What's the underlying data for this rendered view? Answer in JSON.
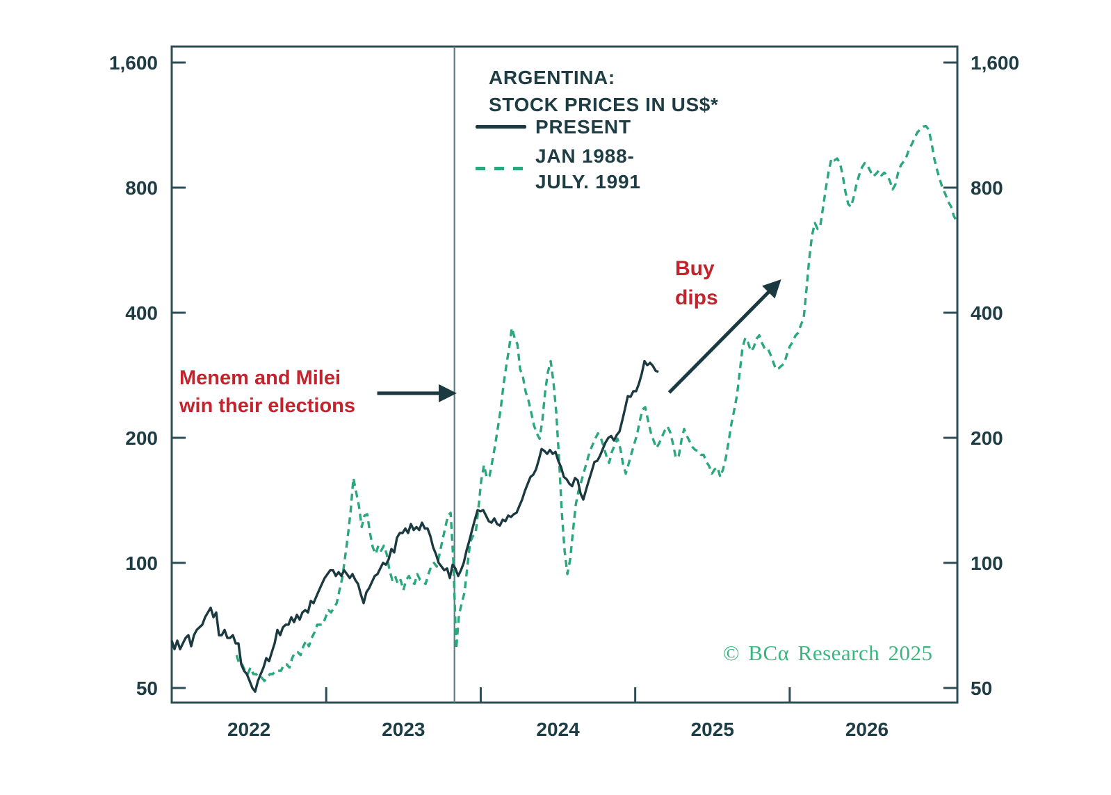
{
  "page": {
    "background": "#ffffff"
  },
  "colors": {
    "dark_line": "#1b3941",
    "green_line": "#2aa77b",
    "red_annotation": "#c2242e",
    "axis": "#2d4c54",
    "tick_label": "#1d3c44",
    "event_line": "#5f7c82",
    "logo_green": "#3bb57e"
  },
  "chart_data": {
    "type": "line",
    "title_lines": [
      "ARGENTINA:",
      "STOCK PRICES IN US$*"
    ],
    "y_axis": {
      "scale": "log",
      "log_base": 2,
      "tick_labels": [
        "1,600",
        "800",
        "400",
        "200",
        "100",
        "50"
      ],
      "tick_values": [
        1600,
        800,
        400,
        200,
        100,
        50
      ],
      "label_sides": "both",
      "range": [
        46,
        1750
      ]
    },
    "x_axis": {
      "range_years": [
        2022.0,
        2027.09
      ],
      "boundary_tick_years": [
        2023,
        2024,
        2025,
        2026
      ],
      "year_labels": [
        "2022",
        "2023",
        "2024",
        "2025",
        "2026"
      ]
    },
    "event_line": {
      "year": 2023.83,
      "meaning": "Menem and Milei win their elections"
    },
    "arrows": [
      {
        "name": "election-arrow",
        "from": [
          2023.33,
          256
        ],
        "to": [
          2023.81,
          256
        ]
      },
      {
        "name": "buy-dips-arrow",
        "from": [
          2025.22,
          257
        ],
        "to": [
          2025.92,
          471
        ]
      }
    ],
    "series": [
      {
        "name": "PRESENT",
        "id": "present",
        "style": "solid",
        "color": "#1b3941",
        "start_year": 2022.0,
        "end_year": 2025.15,
        "values": [
          65,
          62,
          65,
          62,
          64,
          66,
          67,
          63,
          67,
          69,
          70,
          71,
          74,
          76,
          78,
          74,
          76,
          67,
          67,
          69,
          66,
          66,
          67,
          64,
          64,
          57,
          55,
          54,
          52,
          50,
          49,
          52,
          54,
          56,
          59,
          58,
          61,
          64,
          69,
          67,
          70,
          71,
          71,
          74,
          72,
          75,
          73,
          76,
          77,
          76,
          81,
          80,
          83,
          86,
          89,
          92,
          94,
          96,
          96,
          93,
          95,
          93,
          96,
          94,
          92,
          94,
          91,
          89,
          84,
          80,
          85,
          87,
          90,
          93,
          94,
          97,
          100,
          99,
          102,
          108,
          106,
          115,
          118,
          118,
          121,
          118,
          124,
          120,
          122,
          120,
          125,
          121,
          121,
          116,
          109,
          105,
          100,
          98,
          96,
          97,
          92,
          99,
          97,
          93,
          96,
          100,
          107,
          113,
          120,
          127,
          134,
          133,
          134,
          130,
          126,
          125,
          128,
          124,
          123,
          127,
          126,
          130,
          129,
          131,
          132,
          137,
          142,
          149,
          155,
          161,
          163,
          168,
          177,
          188,
          186,
          183,
          187,
          183,
          185,
          176,
          170,
          161,
          159,
          155,
          153,
          160,
          158,
          147,
          142,
          150,
          158,
          166,
          175,
          176,
          181,
          188,
          195,
          200,
          202,
          197,
          203,
          207,
          220,
          235,
          252,
          251,
          259,
          259,
          270,
          285,
          306,
          299,
          303,
          298,
          290,
          288
        ]
      },
      {
        "name": "JAN 1988-JULY. 1991",
        "id": "jan1988-july1991",
        "style": "dashed",
        "color": "#2aa77b",
        "start_year": 2022.42,
        "end_year": 2027.08,
        "values": [
          60,
          57,
          57,
          55,
          54,
          56,
          54,
          54,
          53,
          53,
          52,
          53,
          54,
          54,
          55,
          55,
          55,
          57,
          57,
          56,
          59,
          61,
          61,
          60,
          63,
          65,
          63,
          66,
          68,
          71,
          71,
          71,
          74,
          77,
          76,
          78,
          80,
          86,
          92,
          103,
          116,
          133,
          160,
          148,
          137,
          122,
          130,
          131,
          118,
          109,
          105,
          110,
          107,
          110,
          105,
          96,
          91,
          93,
          89,
          91,
          86,
          91,
          93,
          90,
          89,
          94,
          91,
          90,
          89,
          94,
          98,
          100,
          98,
          105,
          113,
          121,
          130,
          132,
          100,
          62,
          75,
          80,
          85,
          98,
          112,
          116,
          118,
          136,
          158,
          172,
          160,
          162,
          176,
          192,
          212,
          235,
          268,
          298,
          328,
          368,
          348,
          336,
          292,
          280,
          258,
          246,
          230,
          214,
          205,
          199,
          220,
          258,
          288,
          306,
          272,
          230,
          178,
          132,
          107,
          94,
          102,
          119,
          138,
          149,
          157,
          166,
          175,
          185,
          192,
          199,
          205,
          200,
          191,
          181,
          174,
          185,
          192,
          199,
          189,
          173,
          164,
          173,
          183,
          193,
          203,
          219,
          234,
          237,
          220,
          206,
          197,
          189,
          194,
          201,
          208,
          213,
          206,
          193,
          179,
          180,
          197,
          210,
          202,
          196,
          190,
          187,
          186,
          182,
          182,
          175,
          171,
          164,
          168,
          170,
          161,
          168,
          179,
          196,
          216,
          233,
          253,
          288,
          330,
          348,
          339,
          323,
          330,
          346,
          353,
          338,
          328,
          329,
          318,
          305,
          292,
          294,
          298,
          302,
          318,
          332,
          340,
          352,
          358,
          374,
          388,
          455,
          540,
          614,
          658,
          636,
          650,
          720,
          800,
          876,
          941,
          930,
          940,
          919,
          859,
          784,
          731,
          719,
          759,
          815,
          859,
          896,
          917,
          903,
          876,
          851,
          863,
          879,
          856,
          869,
          856,
          831,
          792,
          814,
          871,
          907,
          925,
          951,
          992,
          1021,
          1058,
          1089,
          1104,
          1122,
          1125,
          1103,
          1024,
          938,
          881,
          836,
          796,
          771,
          739,
          721,
          684,
          664
        ]
      }
    ]
  },
  "legend": {
    "items": [
      {
        "label": "PRESENT",
        "swatch": "solid"
      },
      {
        "lines": [
          "JAN 1988-",
          "JULY. 1991"
        ],
        "swatch": "dashed"
      }
    ]
  },
  "annotations": {
    "election": {
      "lines": [
        "Menem and Milei",
        "win their elections"
      ]
    },
    "buy_dips": {
      "lines": [
        "Buy",
        "dips"
      ]
    }
  },
  "footer": {
    "copyright": "© BCα Research 2025"
  }
}
